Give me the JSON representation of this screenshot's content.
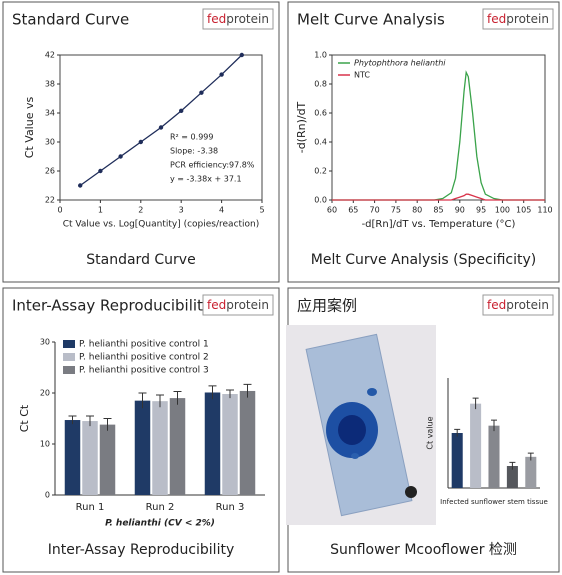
{
  "brand": {
    "prefix": "fed",
    "name": "protein"
  },
  "panels": [
    {
      "title": "Standard Curve",
      "caption": "Standard Curve"
    },
    {
      "title": "Melt Curve Analysis",
      "caption": "Melt Curve Analysis (Specificity)"
    },
    {
      "title": "Inter-Assay Reproducibility",
      "caption": "Inter-Assay Reproducibility"
    },
    {
      "title": "应用案例",
      "caption": "Sunflower Mcooflower 检测"
    }
  ],
  "chart_data": [
    {
      "type": "line",
      "markers": true,
      "color": "#1f2d5a",
      "x": [
        0.5,
        1,
        1.5,
        2,
        2.5,
        3,
        3.5,
        4,
        4.5
      ],
      "values": [
        24,
        26,
        28,
        30,
        32,
        34.3,
        36.8,
        39.3,
        42
      ],
      "xlim": [
        0,
        5
      ],
      "xticks": [
        0,
        1,
        2,
        3,
        4,
        5
      ],
      "ylim": [
        22,
        42
      ],
      "yticks": [
        22,
        26,
        30,
        34,
        38,
        42
      ],
      "xlabel": "Ct Value vs. Log[Quantity] (copies/reaction)",
      "ylabel": "Ct Value vs",
      "annotations": [
        "R² = 0.999",
        "Slope: -3.38",
        "PCR efficiency:97.8%",
        "y = -3.38x + 37.1"
      ]
    },
    {
      "type": "line",
      "legend": "upper left",
      "x": [
        60,
        65,
        70,
        75,
        80,
        84,
        86,
        88,
        89,
        90,
        91,
        91.5,
        92,
        93,
        94,
        95,
        96,
        98,
        100,
        105,
        110
      ],
      "series": [
        {
          "name": "Phytophthora helianthi",
          "color": "#3aa34a",
          "values": [
            0,
            0,
            0,
            0,
            0,
            0,
            0.01,
            0.05,
            0.15,
            0.4,
            0.75,
            0.88,
            0.85,
            0.6,
            0.3,
            0.12,
            0.04,
            0.01,
            0,
            0,
            0
          ]
        },
        {
          "name": "NTC",
          "color": "#d9334a",
          "values": [
            0,
            0,
            0,
            0,
            0,
            0,
            0,
            0,
            0.01,
            0.02,
            0.03,
            0.04,
            0.04,
            0.03,
            0.02,
            0.01,
            0,
            0,
            0,
            0,
            0
          ]
        }
      ],
      "xlim": [
        60,
        110
      ],
      "xticks": [
        60,
        65,
        70,
        75,
        80,
        85,
        90,
        95,
        100,
        105,
        110
      ],
      "ylim": [
        0,
        1
      ],
      "yticks": [
        {
          "value": 0,
          "label": "0.0"
        },
        {
          "value": 0.2,
          "label": "0.2"
        },
        {
          "value": 0.4,
          "label": "0.4"
        },
        {
          "value": 0.6,
          "label": "0.6"
        },
        {
          "value": 0.8,
          "label": "0.8"
        },
        {
          "value": 1,
          "label": "1.0"
        }
      ],
      "xlabel": "-d[Rn]/dT vs. Temperature (°C)",
      "ylabel": "-d(Rn)/dT"
    },
    {
      "type": "grouped-bar",
      "legend": "upper left",
      "categories": [
        "Run 1",
        "Run 2",
        "Run 3"
      ],
      "series": [
        {
          "name": "P. helianthi positive control 1",
          "color": "#1f3a66",
          "values": [
            14.7,
            18.5,
            20.1
          ],
          "errors": [
            0.8,
            1.5,
            1.3
          ]
        },
        {
          "name": "P. helianthi positive control 2",
          "color": "#b9bdc8",
          "values": [
            14.5,
            18.4,
            19.8
          ],
          "errors": [
            1.0,
            1.2,
            0.8
          ]
        },
        {
          "name": "P. helianthi positive control 3",
          "color": "#7a7c82",
          "values": [
            13.8,
            19.0,
            20.4
          ],
          "errors": [
            1.2,
            1.3,
            1.3
          ]
        }
      ],
      "ylim": [
        0,
        30
      ],
      "yticks": [
        0,
        10,
        20,
        30
      ],
      "xlabel": "P. helianthi (CV < 2%)",
      "ylabel": "Ct Ct"
    },
    {
      "type": "bar",
      "categories": [
        null,
        null,
        null,
        null,
        null
      ],
      "values": [
        15,
        23,
        17,
        6,
        8.5
      ],
      "errors": [
        1,
        1.5,
        1.5,
        1,
        1
      ],
      "colors": [
        "#1f3a66",
        "#b9bdc8",
        "#85878d",
        "#55575c",
        "#9a9ca2"
      ],
      "ylim": [
        0,
        30
      ],
      "xlabel": "Infected sunflower stem tissue",
      "ylabel": "Ct value"
    }
  ]
}
